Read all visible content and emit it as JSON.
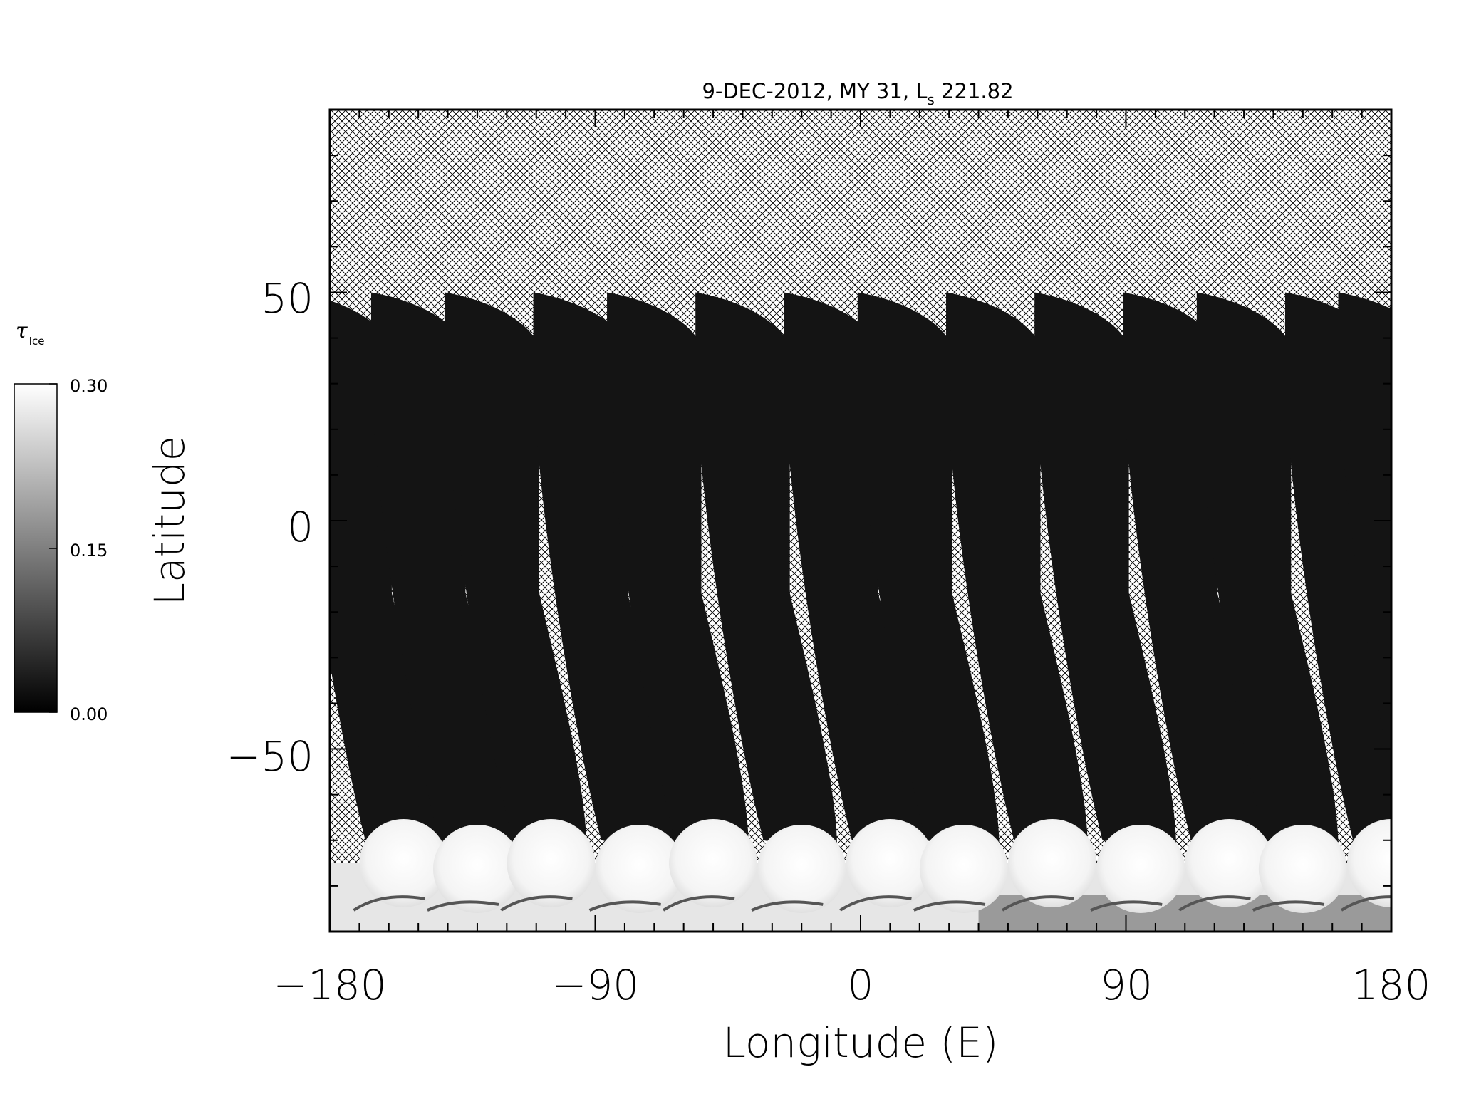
{
  "map": {
    "title_main": "9-DEC-2012, MY 31,  L",
    "title_sub": "s",
    "title_value": " 221.82",
    "x_label": "Longitude (E)",
    "y_label": "Latitude",
    "x_ticks": [
      "−180",
      "−90",
      "0",
      "90",
      "180"
    ],
    "y_ticks": [
      "50",
      "0",
      "−50"
    ],
    "colors": {
      "frame": "#000000",
      "no_data_hatch": "#000000",
      "swath_low": "#141414",
      "ice_high": "#f8f8f8"
    }
  },
  "colorbar": {
    "symbol": "τ",
    "subscript": "Ice",
    "ticks": [
      "0.30",
      "0.15",
      "0.00"
    ],
    "range": [
      0.0,
      0.3
    ]
  },
  "chart_data": {
    "type": "heatmap",
    "title": "9-DEC-2012, MY 31,  Ls 221.82",
    "xlabel": "Longitude (E)",
    "ylabel": "Latitude",
    "xlim": [
      -180,
      180
    ],
    "ylim": [
      -90,
      90
    ],
    "x_ticks": [
      -180,
      -90,
      0,
      90,
      180
    ],
    "y_ticks": [
      50,
      0,
      -50
    ],
    "colorbar": {
      "label": "τ Ice",
      "min": 0.0,
      "max": 0.3,
      "ticks": [
        0.0,
        0.15,
        0.3
      ]
    },
    "orbit_swaths": {
      "count": 14,
      "approx_longitudes": [
        -175,
        -150,
        -125,
        -95,
        -70,
        -40,
        -10,
        15,
        45,
        75,
        105,
        130,
        160,
        178
      ],
      "north_limit_lat": 50,
      "south_limit_lat": -70,
      "typical_tau_ice": 0.01
    },
    "south_polar_cloud_band": {
      "lat_range": [
        -90,
        -68
      ],
      "tau_ice": 0.3
    },
    "no_data": "cross-hatched"
  }
}
